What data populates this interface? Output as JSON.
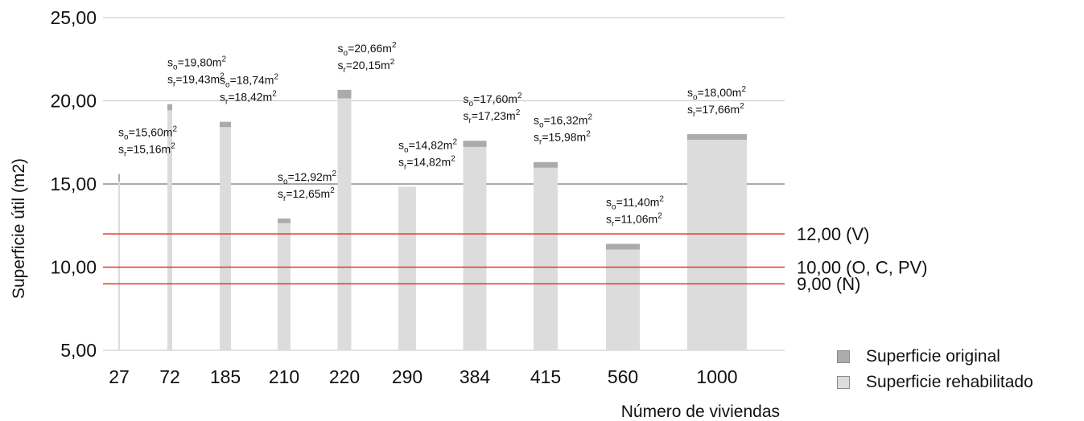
{
  "chart_data": {
    "type": "bar",
    "xlabel": "Número de viviendas",
    "ylabel": "Superficie útil (m2)",
    "ylim": [
      5,
      25
    ],
    "y_ticks": [
      "5,00",
      "10,00",
      "15,00",
      "20,00",
      "25,00"
    ],
    "grid": true,
    "categories": [
      "27",
      "72",
      "185",
      "210",
      "220",
      "290",
      "384",
      "415",
      "560",
      "1000"
    ],
    "series": [
      {
        "name": "Superficie original",
        "color": "#ababab",
        "values": [
          15.6,
          19.8,
          18.74,
          12.92,
          20.66,
          14.82,
          17.6,
          16.32,
          11.4,
          18.0
        ]
      },
      {
        "name": "Superficie rehabilitado",
        "color": "#dcdcdc",
        "values": [
          15.16,
          19.43,
          18.42,
          12.65,
          20.15,
          14.82,
          17.23,
          15.98,
          11.06,
          17.66
        ]
      }
    ],
    "data_labels": [
      {
        "so": "15,60",
        "sr": "15,16"
      },
      {
        "so": "19,80",
        "sr": "19,43"
      },
      {
        "so": "18,74",
        "sr": "18,42"
      },
      {
        "so": "12,92",
        "sr": "12,65"
      },
      {
        "so": "20,66",
        "sr": "20,15"
      },
      {
        "so": "14,82",
        "sr": "14,82"
      },
      {
        "so": "17,60",
        "sr": "17,23"
      },
      {
        "so": "16,32",
        "sr": "15,98"
      },
      {
        "so": "11,40",
        "sr": "11,06"
      },
      {
        "so": "18,00",
        "sr": "17,66"
      }
    ],
    "reference_lines": [
      {
        "value": 12,
        "label": "12,00 (V)",
        "color": "#e8332a"
      },
      {
        "value": 10,
        "label": "10,00 (O, C, PV)",
        "color": "#e8332a"
      },
      {
        "value": 9,
        "label": "9,00 (N)",
        "color": "#e8332a"
      }
    ],
    "legend_position": "bottom-right"
  }
}
